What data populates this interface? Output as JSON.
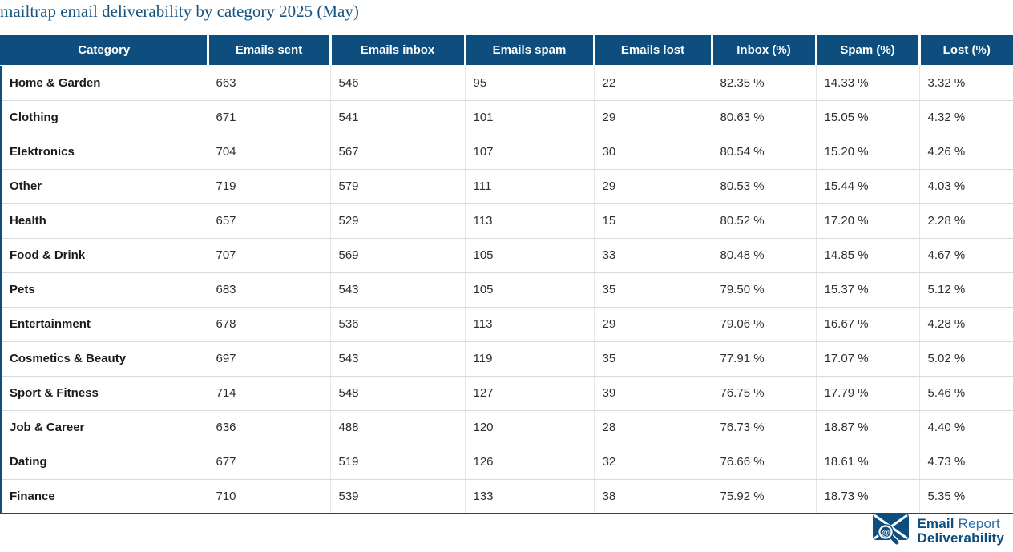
{
  "title": "mailtrap email deliverability by category 2025 (May)",
  "colors": {
    "header_bg": "#0d4e7e",
    "header_text": "#ffffff",
    "title_text": "#15537f",
    "body_text": "#2b2f33",
    "category_text": "#1b1b1b",
    "row_divider": "#d5dbe0",
    "table_border": "#0d4e7e",
    "logo_dark_blue": "#0d4e7e",
    "logo_light_blue": "#2f6ea5"
  },
  "chart_data": {
    "type": "table",
    "title": "mailtrap email deliverability by category 2025 (May)",
    "columns": [
      "Category",
      "Emails sent",
      "Emails inbox",
      "Emails spam",
      "Emails lost",
      "Inbox (%)",
      "Spam (%)",
      "Lost (%)"
    ],
    "rows": [
      [
        "Home & Garden",
        "663",
        "546",
        "95",
        "22",
        "82.35 %",
        "14.33 %",
        "3.32 %"
      ],
      [
        "Clothing",
        "671",
        "541",
        "101",
        "29",
        "80.63 %",
        "15.05 %",
        "4.32 %"
      ],
      [
        "Elektronics",
        "704",
        "567",
        "107",
        "30",
        "80.54 %",
        "15.20 %",
        "4.26 %"
      ],
      [
        "Other",
        "719",
        "579",
        "111",
        "29",
        "80.53 %",
        "15.44 %",
        "4.03 %"
      ],
      [
        "Health",
        "657",
        "529",
        "113",
        "15",
        "80.52 %",
        "17.20 %",
        "2.28 %"
      ],
      [
        "Food & Drink",
        "707",
        "569",
        "105",
        "33",
        "80.48 %",
        "14.85 %",
        "4.67 %"
      ],
      [
        "Pets",
        "683",
        "543",
        "105",
        "35",
        "79.50 %",
        "15.37 %",
        "5.12 %"
      ],
      [
        "Entertainment",
        "678",
        "536",
        "113",
        "29",
        "79.06 %",
        "16.67 %",
        "4.28 %"
      ],
      [
        "Cosmetics & Beauty",
        "697",
        "543",
        "119",
        "35",
        "77.91 %",
        "17.07 %",
        "5.02 %"
      ],
      [
        "Sport & Fitness",
        "714",
        "548",
        "127",
        "39",
        "76.75 %",
        "17.79 %",
        "5.46 %"
      ],
      [
        "Job & Career",
        "636",
        "488",
        "120",
        "28",
        "76.73 %",
        "18.87 %",
        "4.40 %"
      ],
      [
        "Dating",
        "677",
        "519",
        "126",
        "32",
        "76.66 %",
        "18.61 %",
        "4.73 %"
      ],
      [
        "Finance",
        "710",
        "539",
        "133",
        "38",
        "75.92 %",
        "18.73 %",
        "5.35 %"
      ]
    ]
  },
  "logo": {
    "line1_bold": "Email",
    "line1_regular": "Report",
    "line2": "Deliverability",
    "glass_symbol": "@"
  }
}
